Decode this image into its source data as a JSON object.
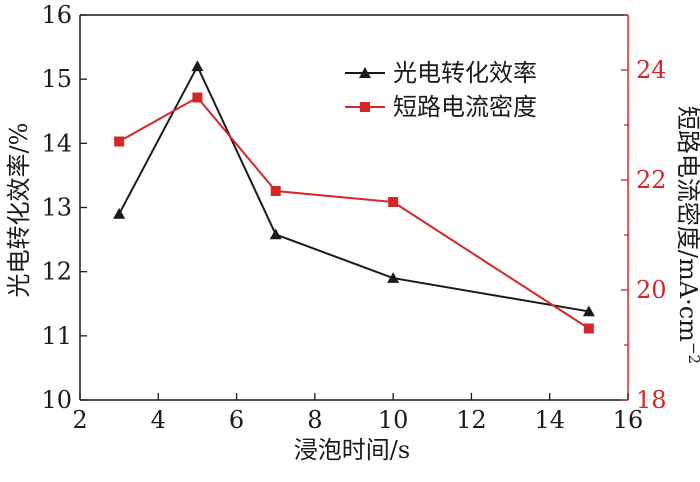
{
  "chart_data": {
    "type": "line",
    "xlabel": "浸泡时间/s",
    "ylabel_left": "光电转化效率/%",
    "ylabel_right": "短路电流密度/mA·cm",
    "ylabel_right_superscript": "−2",
    "xlim": [
      2,
      16
    ],
    "x_ticks": [
      2,
      4,
      6,
      8,
      10,
      12,
      14,
      16
    ],
    "ylim_left": [
      10,
      16
    ],
    "y_ticks_left": [
      10,
      11,
      12,
      13,
      14,
      15,
      16
    ],
    "ylim_right": [
      18,
      25
    ],
    "y_ticks_right": [
      18,
      20,
      22,
      24
    ],
    "grid": false,
    "legend_position": "top-right",
    "colors": {
      "efficiency": "#1a1a1a",
      "current": "#d62728",
      "right_axis": "#d62728",
      "left_axis": "#1a1a1a"
    },
    "series": [
      {
        "name": "光电转化效率",
        "axis": "left",
        "marker": "triangle",
        "x": [
          3,
          5,
          7,
          10,
          15
        ],
        "values": [
          12.9,
          15.2,
          12.58,
          11.9,
          11.38
        ]
      },
      {
        "name": "短路电流密度",
        "axis": "right",
        "marker": "square",
        "x": [
          3,
          5,
          7,
          10,
          15
        ],
        "values": [
          22.7,
          23.5,
          21.8,
          21.6,
          19.3
        ]
      }
    ]
  }
}
